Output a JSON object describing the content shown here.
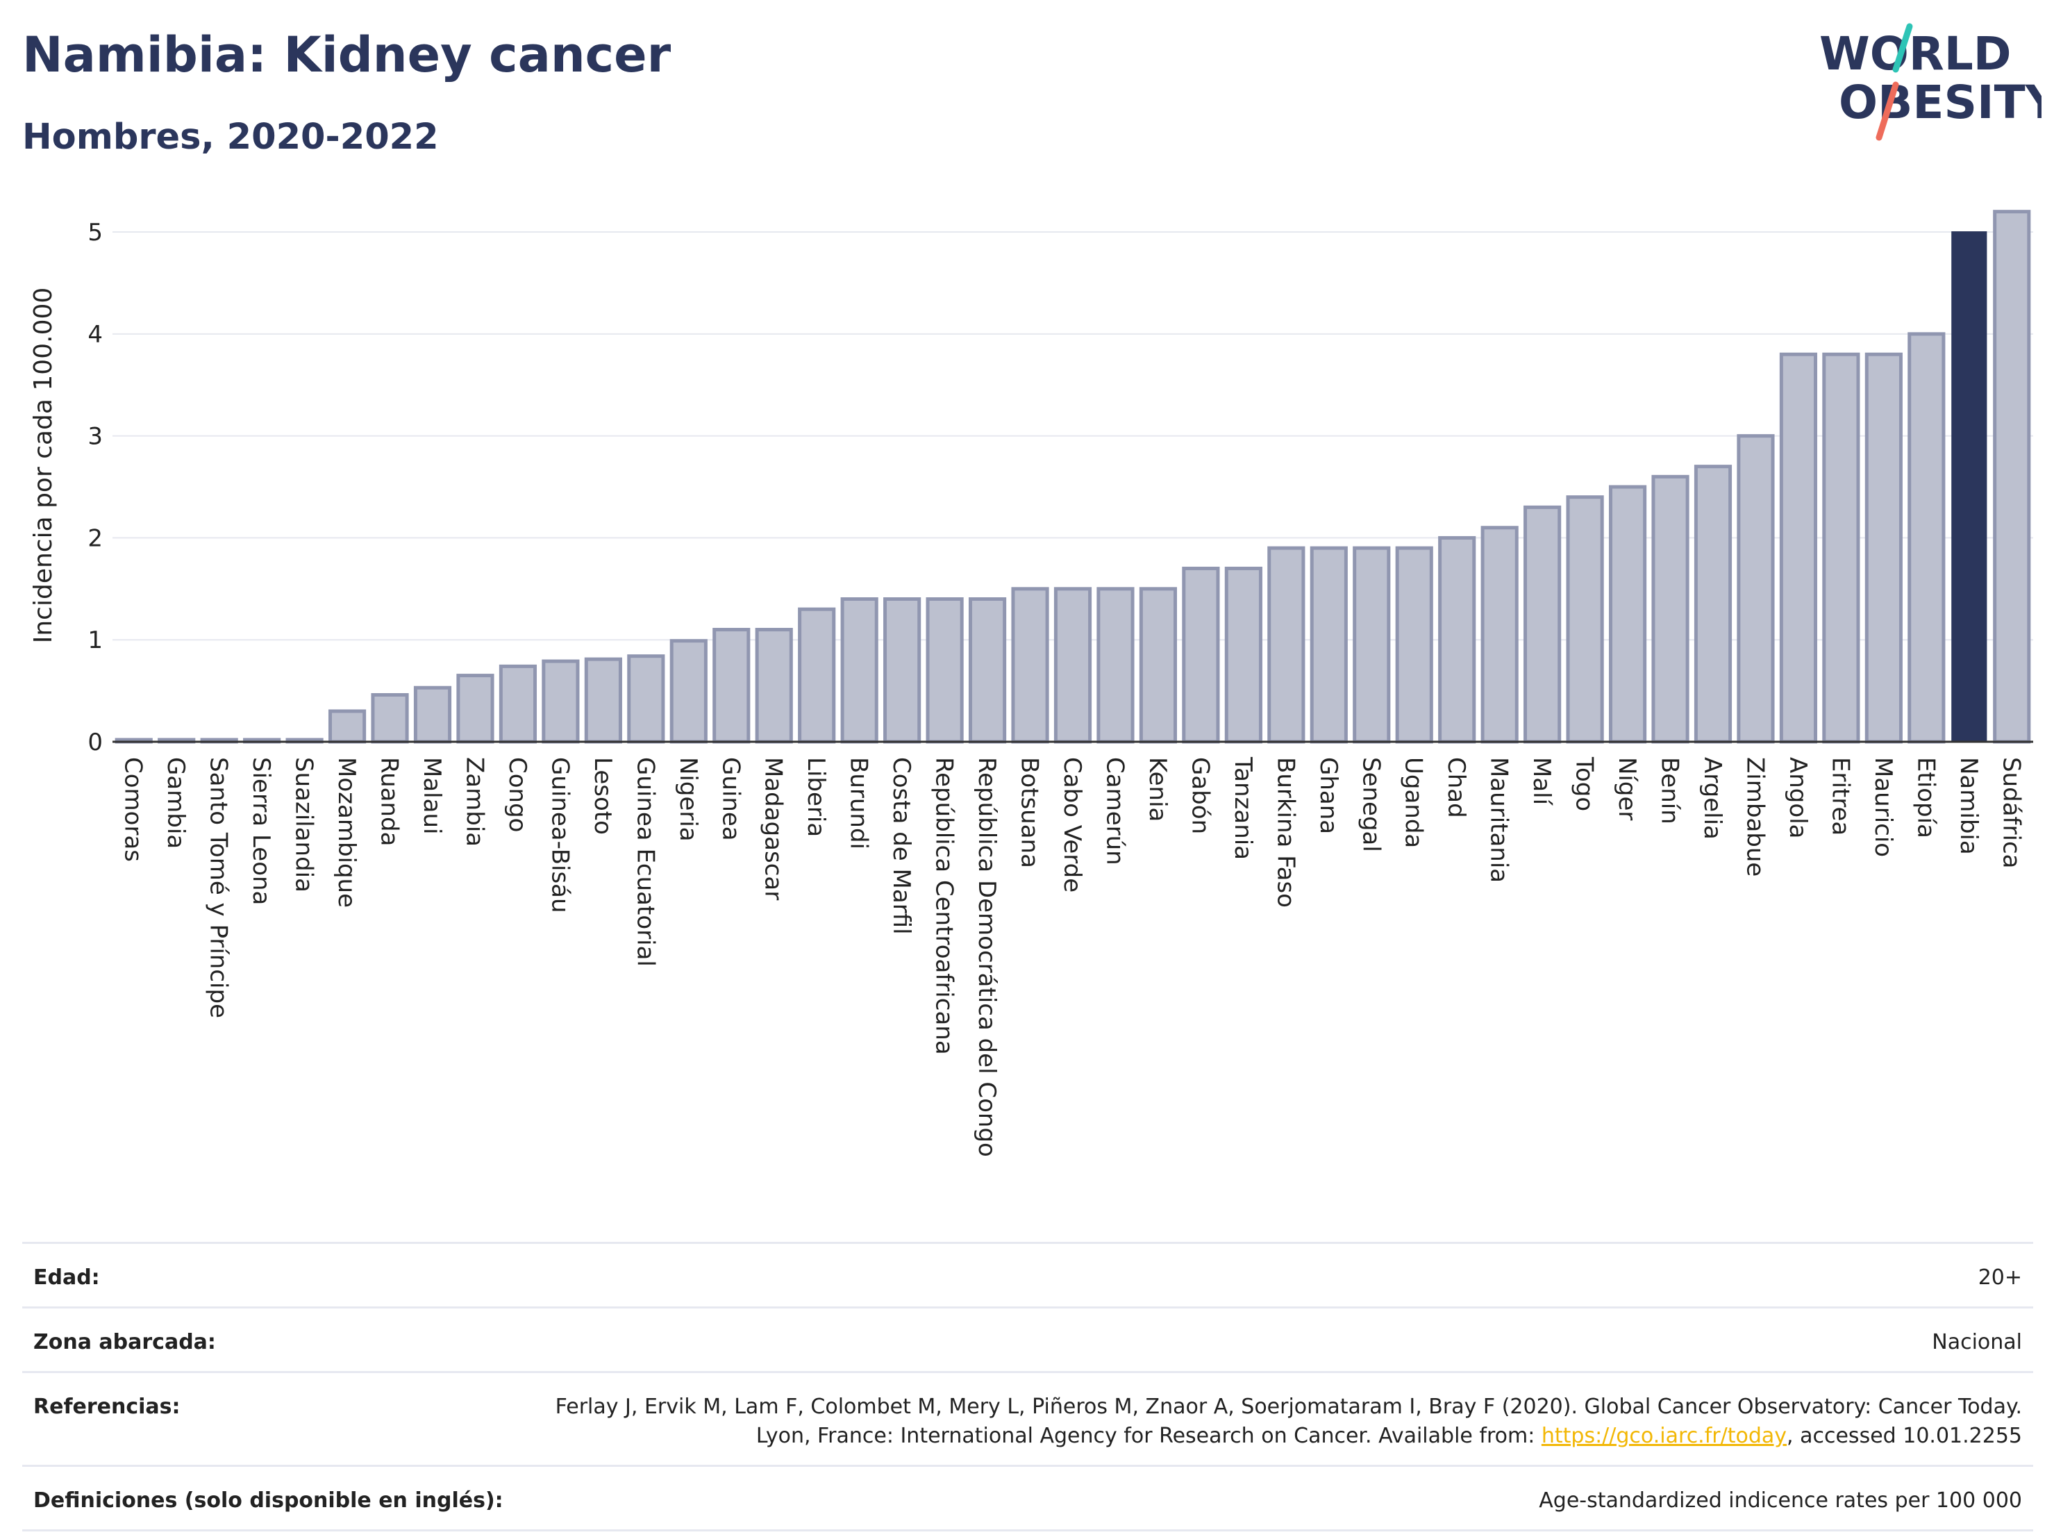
{
  "header": {
    "title": "Namibia: Kidney cancer",
    "subtitle": "Hombres, 2020-2022"
  },
  "logo": {
    "line1": "WORLD",
    "line2": "OBESITY",
    "colors": {
      "text": "#2b365c",
      "slash_top": "#2ec4b6",
      "slash_bottom": "#ee6c5b"
    }
  },
  "chart_data": {
    "type": "bar",
    "ylabel": "Incidencia por cada 100.000",
    "xlabel": "",
    "ylim": [
      0,
      5.3
    ],
    "yticks": [
      0,
      1,
      2,
      3,
      4,
      5
    ],
    "grid": true,
    "highlight": "Namibia",
    "colors": {
      "bar_fill": "#bcc0cf",
      "bar_stroke": "#9096b0",
      "highlight_fill": "#2b365c",
      "grid": "#e6e8ef",
      "axis": "#333333"
    },
    "categories": [
      "Comoras",
      "Gambia",
      "Santo Tomé y Príncipe",
      "Sierra Leona",
      "Suazilandia",
      "Mozambique",
      "Ruanda",
      "Malaui",
      "Zambia",
      "Congo",
      "Guinea-Bisáu",
      "Lesoto",
      "Guinea Ecuatorial",
      "Nigeria",
      "Guinea",
      "Madagascar",
      "Liberia",
      "Burundi",
      "Costa de Marfil",
      "República Centroafricana",
      "República Democrática del Congo",
      "Botsuana",
      "Cabo Verde",
      "Camerún",
      "Kenia",
      "Gabón",
      "Tanzania",
      "Burkina Faso",
      "Ghana",
      "Senegal",
      "Uganda",
      "Chad",
      "Mauritania",
      "Malí",
      "Togo",
      "Níger",
      "Benín",
      "Argelia",
      "Zimbabue",
      "Angola",
      "Eritrea",
      "Mauricio",
      "Etiopía",
      "Namibia",
      "Sudáfrica"
    ],
    "values": [
      0.02,
      0.02,
      0.02,
      0.02,
      0.02,
      0.3,
      0.46,
      0.53,
      0.65,
      0.74,
      0.79,
      0.81,
      0.84,
      0.99,
      1.1,
      1.1,
      1.3,
      1.4,
      1.4,
      1.4,
      1.4,
      1.5,
      1.5,
      1.5,
      1.5,
      1.7,
      1.7,
      1.9,
      1.9,
      1.9,
      1.9,
      2.0,
      2.1,
      2.3,
      2.4,
      2.5,
      2.6,
      2.7,
      3.0,
      3.8,
      3.8,
      3.8,
      4.0,
      5.0,
      5.2
    ]
  },
  "info": {
    "rows": [
      {
        "label": "Edad:",
        "value": "20+"
      },
      {
        "label": "Zona abarcada:",
        "value": "Nacional"
      },
      {
        "label": "Referencias:",
        "value_before": "Ferlay J, Ervik M, Lam F, Colombet M, Mery L, Piñeros M, Znaor A, Soerjomataram I, Bray F (2020). Global Cancer Observatory: Cancer Today. Lyon, France: International Agency for Research on Cancer. Available from: ",
        "link": "https://gco.iarc.fr/today",
        "value_after": ", accessed 10.01.2255"
      },
      {
        "label": "Definiciones (solo disponible en inglés):",
        "value": "Age-standardized indicence rates per 100 000"
      }
    ]
  }
}
